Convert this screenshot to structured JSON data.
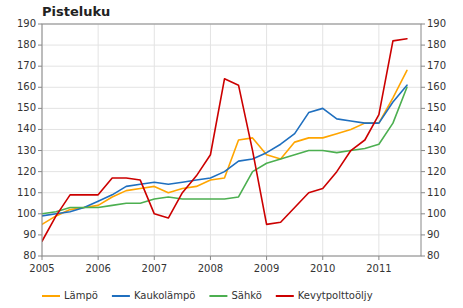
{
  "chart_data": {
    "type": "line",
    "title": "Pisteluku",
    "x": [
      2005.0,
      2005.25,
      2005.5,
      2005.75,
      2006.0,
      2006.25,
      2006.5,
      2006.75,
      2007.0,
      2007.25,
      2007.5,
      2007.75,
      2008.0,
      2008.25,
      2008.5,
      2008.75,
      2009.0,
      2009.25,
      2009.5,
      2009.75,
      2010.0,
      2010.25,
      2010.5,
      2010.75,
      2011.0,
      2011.25,
      2011.5
    ],
    "series": [
      {
        "name": "Lämpö",
        "color": "#FFA500",
        "values": [
          95,
          99,
          102,
          103,
          104,
          108,
          111,
          112,
          113,
          110,
          112,
          113,
          116,
          117,
          135,
          136,
          128,
          126,
          134,
          136,
          136,
          138,
          140,
          143,
          143,
          155,
          168
        ]
      },
      {
        "name": "Kaukolämpö",
        "color": "#1F6FBF",
        "values": [
          99,
          100,
          101,
          103,
          106,
          109,
          113,
          114,
          115,
          114,
          115,
          116,
          117,
          120,
          125,
          126,
          129,
          133,
          138,
          148,
          150,
          145,
          144,
          143,
          143,
          153,
          161
        ]
      },
      {
        "name": "Sähkö",
        "color": "#4CAF50",
        "values": [
          100,
          101,
          103,
          103,
          103,
          104,
          105,
          105,
          107,
          108,
          107,
          107,
          107,
          107,
          108,
          120,
          124,
          126,
          128,
          130,
          130,
          129,
          130,
          131,
          133,
          143,
          160
        ]
      },
      {
        "name": "Kevytpolttoöljy",
        "color": "#CC0000",
        "values": [
          87,
          99,
          109,
          109,
          109,
          117,
          117,
          116,
          100,
          98,
          110,
          118,
          128,
          164,
          161,
          130,
          95,
          96,
          103,
          110,
          112,
          120,
          130,
          135,
          147,
          182,
          183
        ]
      }
    ],
    "xlim": [
      2005.0,
      2011.75
    ],
    "xticks": [
      2005,
      2006,
      2007,
      2008,
      2009,
      2010,
      2011
    ],
    "ylim": [
      80,
      190
    ],
    "yticks": [
      80,
      90,
      100,
      110,
      120,
      130,
      140,
      150,
      160,
      170,
      180,
      190
    ],
    "y2lim": [
      80,
      190
    ],
    "y2ticks": [
      80,
      90,
      100,
      110,
      120,
      130,
      140,
      150,
      160,
      170,
      180,
      190
    ],
    "grid": true,
    "legend": "lower left"
  }
}
